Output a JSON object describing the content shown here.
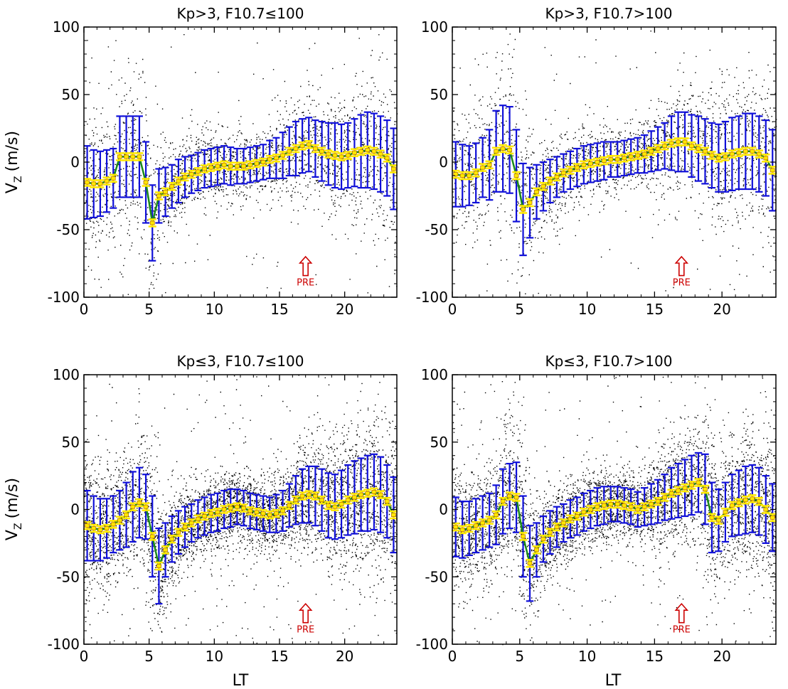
{
  "figure": {
    "y_label_main": "V",
    "y_label_sub": "Z",
    "y_label_unit": "(m/s)",
    "x_label": "LT",
    "annotation": "PRE"
  },
  "colors": {
    "scatter": "#000000",
    "errorbar": "#1010d8",
    "mean_marker": "#ffe800",
    "mean_edge": "#c07800",
    "curve": "#1a8a1a",
    "annotation": "#cc0000"
  },
  "chart_data": [
    {
      "type": "scatter",
      "title": "Kp>3, F10.7≤100",
      "xlabel": "",
      "ylabel": "Vz (m/s)",
      "xlim": [
        0,
        24
      ],
      "ylim": [
        -100,
        100
      ],
      "xticks": [
        "0",
        "5",
        "10",
        "15",
        "20"
      ],
      "yticks": [
        "100",
        "50",
        "0",
        "-50",
        "-100"
      ],
      "grid": false,
      "scatter_density": "low",
      "pre_arrow_lt": 17,
      "series": [
        {
          "x": [
            0.25,
            0.75,
            1.25,
            1.75,
            2.25,
            2.75,
            3.25,
            3.75,
            4.25,
            4.75,
            5.25,
            5.75,
            6.25,
            6.75,
            7.25,
            7.75,
            8.25,
            8.75,
            9.25,
            9.75,
            10.25,
            10.75,
            11.25,
            11.75,
            12.25,
            12.75,
            13.25,
            13.75,
            14.25,
            14.75,
            15.25,
            15.75,
            16.25,
            16.75,
            17.25,
            17.75,
            18.25,
            18.75,
            19.25,
            19.75,
            20.25,
            20.75,
            21.25,
            21.75,
            22.25,
            22.75,
            23.25,
            23.75
          ],
          "mean": [
            -15,
            -16,
            -16,
            -14,
            -12,
            4,
            4,
            4,
            4,
            -15,
            -45,
            -25,
            -22,
            -18,
            -14,
            -11,
            -9,
            -7,
            -5,
            -4,
            -3,
            -2,
            -3,
            -3,
            -3,
            -2,
            -1,
            0,
            2,
            3,
            5,
            8,
            10,
            12,
            13,
            10,
            8,
            6,
            5,
            4,
            5,
            7,
            8,
            9,
            8,
            6,
            3,
            -5
          ],
          "err": [
            27,
            25,
            24,
            23,
            22,
            30,
            30,
            30,
            30,
            30,
            28,
            20,
            18,
            16,
            16,
            15,
            14,
            14,
            14,
            14,
            14,
            14,
            14,
            13,
            13,
            13,
            13,
            13,
            14,
            15,
            17,
            18,
            20,
            20,
            20,
            21,
            22,
            23,
            24,
            24,
            24,
            25,
            27,
            28,
            28,
            28,
            28,
            30
          ]
        }
      ]
    },
    {
      "type": "scatter",
      "title": "Kp>3, F10.7>100",
      "xlabel": "",
      "ylabel": "",
      "xlim": [
        0,
        24
      ],
      "ylim": [
        -100,
        100
      ],
      "xticks": [
        "0",
        "5",
        "10",
        "15",
        "20"
      ],
      "yticks": [
        "100",
        "50",
        "0",
        "-50",
        "-100"
      ],
      "grid": false,
      "scatter_density": "low",
      "pre_arrow_lt": 17,
      "series": [
        {
          "x": [
            0.25,
            0.75,
            1.25,
            1.75,
            2.25,
            2.75,
            3.25,
            3.75,
            4.25,
            4.75,
            5.25,
            5.75,
            6.25,
            6.75,
            7.25,
            7.75,
            8.25,
            8.75,
            9.25,
            9.75,
            10.25,
            10.75,
            11.25,
            11.75,
            12.25,
            12.75,
            13.25,
            13.75,
            14.25,
            14.75,
            15.25,
            15.75,
            16.25,
            16.75,
            17.25,
            17.75,
            18.25,
            18.75,
            19.25,
            19.75,
            20.25,
            20.75,
            21.25,
            21.75,
            22.25,
            22.75,
            23.25,
            23.75
          ],
          "mean": [
            -9,
            -10,
            -10,
            -8,
            -4,
            -2,
            8,
            10,
            9,
            -10,
            -35,
            -30,
            -22,
            -18,
            -14,
            -11,
            -8,
            -6,
            -4,
            -2,
            -1,
            0,
            1,
            2,
            2,
            3,
            4,
            5,
            6,
            8,
            10,
            12,
            14,
            15,
            15,
            12,
            10,
            8,
            5,
            3,
            4,
            6,
            7,
            8,
            8,
            6,
            3,
            -6
          ],
          "err": [
            24,
            23,
            22,
            22,
            22,
            26,
            30,
            32,
            32,
            34,
            34,
            26,
            20,
            18,
            16,
            15,
            14,
            14,
            14,
            14,
            14,
            14,
            14,
            13,
            13,
            13,
            13,
            13,
            14,
            15,
            16,
            17,
            20,
            22,
            22,
            23,
            24,
            24,
            24,
            25,
            26,
            27,
            27,
            28,
            28,
            28,
            28,
            30
          ]
        }
      ]
    },
    {
      "type": "scatter",
      "title": "Kp≤3, F10.7≤100",
      "xlabel": "LT",
      "ylabel": "Vz (m/s)",
      "xlim": [
        0,
        24
      ],
      "ylim": [
        -100,
        100
      ],
      "xticks": [
        "0",
        "5",
        "10",
        "15",
        "20"
      ],
      "yticks": [
        "100",
        "50",
        "0",
        "-50",
        "-100"
      ],
      "grid": false,
      "scatter_density": "high",
      "pre_arrow_lt": 17,
      "series": [
        {
          "x": [
            0.25,
            0.75,
            1.25,
            1.75,
            2.25,
            2.75,
            3.25,
            3.75,
            4.25,
            4.75,
            5.25,
            5.75,
            6.25,
            6.75,
            7.25,
            7.75,
            8.25,
            8.75,
            9.25,
            9.75,
            10.25,
            10.75,
            11.25,
            11.75,
            12.25,
            12.75,
            13.25,
            13.75,
            14.25,
            14.75,
            15.25,
            15.75,
            16.25,
            16.75,
            17.25,
            17.75,
            18.25,
            18.75,
            19.25,
            19.75,
            20.25,
            20.75,
            21.25,
            21.75,
            22.25,
            22.75,
            23.25,
            23.75
          ],
          "mean": [
            -12,
            -14,
            -15,
            -14,
            -11,
            -8,
            -4,
            2,
            5,
            2,
            -20,
            -42,
            -30,
            -22,
            -17,
            -13,
            -10,
            -7,
            -5,
            -3,
            -2,
            0,
            1,
            2,
            1,
            -1,
            -2,
            -3,
            -4,
            -3,
            -1,
            3,
            7,
            10,
            11,
            10,
            7,
            3,
            2,
            4,
            7,
            9,
            11,
            12,
            13,
            11,
            6,
            -4
          ],
          "err": [
            26,
            24,
            23,
            22,
            21,
            22,
            24,
            26,
            26,
            24,
            30,
            28,
            20,
            17,
            16,
            15,
            14,
            14,
            14,
            14,
            14,
            14,
            14,
            13,
            13,
            13,
            13,
            13,
            13,
            14,
            15,
            16,
            18,
            20,
            21,
            22,
            23,
            24,
            24,
            25,
            26,
            27,
            27,
            28,
            28,
            28,
            27,
            28
          ]
        }
      ]
    },
    {
      "type": "scatter",
      "title": "Kp≤3, F10.7>100",
      "xlabel": "LT",
      "ylabel": "",
      "xlim": [
        0,
        24
      ],
      "ylim": [
        -100,
        100
      ],
      "xticks": [
        "0",
        "5",
        "10",
        "15",
        "20"
      ],
      "yticks": [
        "100",
        "50",
        "0",
        "-50",
        "-100"
      ],
      "grid": false,
      "scatter_density": "high",
      "pre_arrow_lt": 17,
      "series": [
        {
          "x": [
            0.25,
            0.75,
            1.25,
            1.75,
            2.25,
            2.75,
            3.25,
            3.75,
            4.25,
            4.75,
            5.25,
            5.75,
            6.25,
            6.75,
            7.25,
            7.75,
            8.25,
            8.75,
            9.25,
            9.75,
            10.25,
            10.75,
            11.25,
            11.75,
            12.25,
            12.75,
            13.25,
            13.75,
            14.25,
            14.75,
            15.25,
            15.75,
            16.25,
            16.75,
            17.25,
            17.75,
            18.25,
            18.75,
            19.25,
            19.75,
            20.25,
            20.75,
            21.25,
            21.75,
            22.25,
            22.75,
            23.25,
            23.75
          ],
          "mean": [
            -13,
            -15,
            -14,
            -12,
            -10,
            -8,
            -4,
            6,
            10,
            9,
            -20,
            -40,
            -30,
            -22,
            -17,
            -13,
            -10,
            -7,
            -5,
            -2,
            0,
            2,
            3,
            4,
            4,
            3,
            2,
            0,
            2,
            4,
            6,
            9,
            12,
            14,
            16,
            18,
            20,
            15,
            -6,
            -8,
            -2,
            3,
            5,
            7,
            8,
            6,
            0,
            -6
          ],
          "err": [
            22,
            21,
            20,
            20,
            20,
            20,
            22,
            24,
            24,
            26,
            30,
            28,
            20,
            17,
            16,
            15,
            14,
            14,
            14,
            14,
            14,
            14,
            14,
            13,
            13,
            13,
            13,
            13,
            14,
            15,
            16,
            17,
            19,
            20,
            21,
            22,
            22,
            26,
            26,
            23,
            22,
            23,
            24,
            25,
            25,
            25,
            25,
            25
          ]
        }
      ]
    }
  ]
}
